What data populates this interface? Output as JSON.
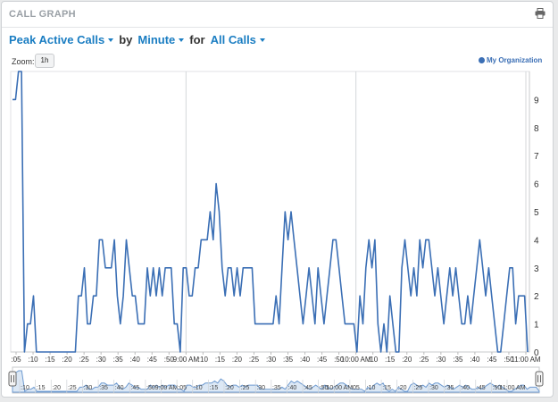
{
  "header": {
    "title": "CALL GRAPH",
    "print_icon": "print-icon"
  },
  "controls": {
    "metric": "Peak Active Calls",
    "by_label": "by",
    "interval": "Minute",
    "for_label": "for",
    "scope": "All Calls"
  },
  "zoom": {
    "label": "Zoom:",
    "button": "1h"
  },
  "legend": {
    "series_name": "My Organization",
    "color": "#3b6fb5"
  },
  "chart_data": {
    "type": "line",
    "y_ticks": [
      "0",
      "1",
      "2",
      "3",
      "4",
      "5",
      "6",
      "7",
      "8",
      "9"
    ],
    "ylim": [
      0,
      10
    ],
    "x_ticks": [
      ":05",
      ":10",
      ":15",
      ":20",
      ":25",
      ":30",
      ":35",
      ":40",
      ":45",
      ":50",
      "9:00 AM",
      ":10",
      ":15",
      ":20",
      ":25",
      ":30",
      ":35",
      ":40",
      ":45",
      ":50",
      "10:00 AM",
      ":10",
      ":15",
      ":20",
      ":25",
      ":30",
      ":35",
      ":40",
      ":45",
      ":50",
      "11:00 AM"
    ],
    "navigator_ticks": [
      ":10",
      ":15",
      ":20",
      ":25",
      ":30",
      ":35",
      ":40",
      ":45",
      ":50",
      "9:00 AM",
      ":05",
      ":10",
      ":15",
      ":20",
      ":25",
      ":30",
      ":35",
      ":40",
      ":45",
      ":50",
      "10:00 AM",
      ":05",
      ":10",
      ":15",
      ":20",
      ":25",
      ":30",
      ":35",
      ":40",
      ":45",
      ":50",
      "11:00 AM"
    ],
    "x_start_minute": 0,
    "x_end_minute": 122,
    "series": [
      {
        "name": "My Organization",
        "values": [
          9,
          9,
          10,
          10,
          0,
          1,
          1,
          2,
          0,
          0,
          0,
          0,
          0,
          0,
          0,
          0,
          0,
          0,
          0,
          0,
          0,
          0,
          2,
          2,
          3,
          1,
          1,
          2,
          2,
          4,
          4,
          3,
          3,
          3,
          4,
          2,
          1,
          2,
          4,
          3,
          2,
          2,
          1,
          1,
          1,
          3,
          2,
          3,
          2,
          3,
          2,
          3,
          3,
          3,
          1,
          1,
          0,
          3,
          3,
          2,
          2,
          3,
          3,
          4,
          4,
          4,
          5,
          4,
          6,
          5,
          3,
          2,
          3,
          3,
          2,
          3,
          2,
          3,
          3,
          3,
          3,
          1,
          1,
          1,
          1,
          1,
          1,
          1,
          2,
          1,
          3,
          5,
          4,
          5,
          4,
          3,
          2,
          1,
          2,
          3,
          2,
          1,
          3,
          2,
          1,
          2,
          3,
          4,
          4,
          3,
          2,
          1,
          1,
          1,
          1,
          0,
          2,
          1,
          3,
          4,
          3,
          4,
          1,
          0,
          1,
          0,
          2,
          1,
          0,
          0,
          3,
          4,
          3,
          2,
          3,
          2,
          4,
          3,
          4,
          4,
          3,
          2,
          3,
          2,
          1,
          2,
          3,
          2,
          3,
          2,
          1,
          1,
          2,
          1,
          2,
          3,
          4,
          3,
          2,
          3,
          2,
          1,
          0,
          0,
          1,
          2,
          3,
          3,
          1,
          2,
          2,
          2,
          0
        ]
      }
    ]
  }
}
